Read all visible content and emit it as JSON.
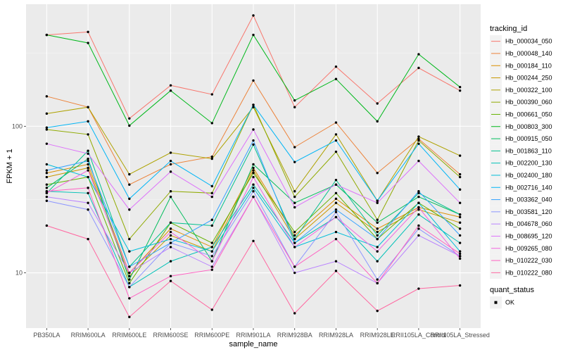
{
  "chart_data": {
    "type": "line",
    "xlabel": "sample_name",
    "ylabel": "FPKM + 1",
    "y_scale": "log",
    "ylim": [
      4.2,
      680
    ],
    "y_ticks": [
      10,
      100
    ],
    "grid": true,
    "categories": [
      "PB350LA",
      "RRIM600LA",
      "RRIM600LE",
      "RRIM600SE",
      "RRIM600PE",
      "RRIM901LA",
      "RRIM928BA",
      "RRIM928LA",
      "RRIM928LE",
      "RRII105LA_Control",
      "RRII105LA_Stressed"
    ],
    "legend_position": "right",
    "legend_title": "tracking_id",
    "legend2": {
      "title": "quant_status",
      "items": [
        "OK"
      ]
    },
    "series": [
      {
        "name": "Hb_000034_050",
        "color": "#F8766D",
        "values": [
          420,
          440,
          113,
          190,
          165,
          570,
          135,
          255,
          143,
          250,
          175
        ]
      },
      {
        "name": "Hb_000048_140",
        "color": "#EC8239",
        "values": [
          160,
          135,
          40,
          55,
          62,
          205,
          72,
          106,
          48,
          82,
          47
        ]
      },
      {
        "name": "Hb_000184_110",
        "color": "#DB8E00",
        "values": [
          48,
          55,
          10,
          20,
          15,
          52,
          18,
          32,
          20,
          28,
          24
        ]
      },
      {
        "name": "Hb_000244_250",
        "color": "#C79800",
        "values": [
          45,
          52,
          9.5,
          18,
          14,
          50,
          17,
          30,
          19,
          27,
          22
        ]
      },
      {
        "name": "Hb_000322_100",
        "color": "#AEA200",
        "values": [
          122,
          135,
          47,
          66,
          60,
          135,
          36,
          88,
          31,
          85,
          63
        ]
      },
      {
        "name": "Hb_000390_060",
        "color": "#8FAA00",
        "values": [
          95,
          88,
          17,
          36,
          35,
          140,
          33,
          67,
          23,
          80,
          45
        ]
      },
      {
        "name": "Hb_000661_050",
        "color": "#64B200",
        "values": [
          40,
          45,
          8.5,
          22,
          16,
          48,
          19,
          35,
          17,
          30,
          20
        ]
      },
      {
        "name": "Hb_000803_300",
        "color": "#00B81B",
        "values": [
          420,
          370,
          101,
          175,
          105,
          420,
          150,
          210,
          108,
          310,
          185
        ]
      },
      {
        "name": "Hb_000915_050",
        "color": "#00BD5C",
        "values": [
          38,
          60,
          9,
          33,
          12,
          55,
          30,
          40,
          22,
          33,
          25
        ]
      },
      {
        "name": "Hb_001863_110",
        "color": "#00C08E",
        "values": [
          35,
          68,
          11,
          22,
          21,
          75,
          17,
          43,
          18,
          35,
          25
        ]
      },
      {
        "name": "Hb_002200_130",
        "color": "#00C1B7",
        "values": [
          36,
          35,
          8,
          12,
          15,
          40,
          16,
          24,
          12,
          25,
          16
        ]
      },
      {
        "name": "Hb_002400_180",
        "color": "#00BDD9",
        "values": [
          55,
          45,
          14,
          17,
          14,
          38,
          15,
          19,
          15,
          30,
          14
        ]
      },
      {
        "name": "Hb_002716_140",
        "color": "#00B5F6",
        "values": [
          98,
          108,
          32,
          58,
          39,
          140,
          57,
          80,
          31,
          76,
          37
        ]
      },
      {
        "name": "Hb_003362_040",
        "color": "#35A2FF",
        "values": [
          50,
          58,
          11,
          16,
          23,
          80,
          16,
          27,
          17,
          36,
          18
        ]
      },
      {
        "name": "Hb_003581_120",
        "color": "#8D96FF",
        "values": [
          31,
          27,
          8,
          16,
          13,
          36,
          11,
          26,
          9,
          20,
          13
        ]
      },
      {
        "name": "Hb_004678_060",
        "color": "#BA83FF",
        "values": [
          33,
          30,
          10,
          15,
          11,
          33,
          10,
          12,
          8.5,
          18,
          13
        ]
      },
      {
        "name": "Hb_008695_120",
        "color": "#DD71FA",
        "values": [
          76,
          65,
          27,
          49,
          33,
          95,
          28,
          40,
          30,
          58,
          30
        ]
      },
      {
        "name": "Hb_009265_080",
        "color": "#F265E0",
        "values": [
          35,
          50,
          10,
          19,
          12,
          45,
          15,
          24,
          14,
          28,
          12.5
        ]
      },
      {
        "name": "Hb_010222_030",
        "color": "#FF61C2",
        "values": [
          36,
          38,
          6.7,
          9.5,
          10.5,
          33,
          11,
          17,
          8.5,
          21,
          13.5
        ]
      },
      {
        "name": "Hb_010222_080",
        "color": "#FF68A1",
        "values": [
          21,
          17,
          5,
          8.8,
          5.6,
          16.5,
          5.3,
          10.3,
          5.5,
          7.8,
          8.2
        ]
      }
    ]
  }
}
